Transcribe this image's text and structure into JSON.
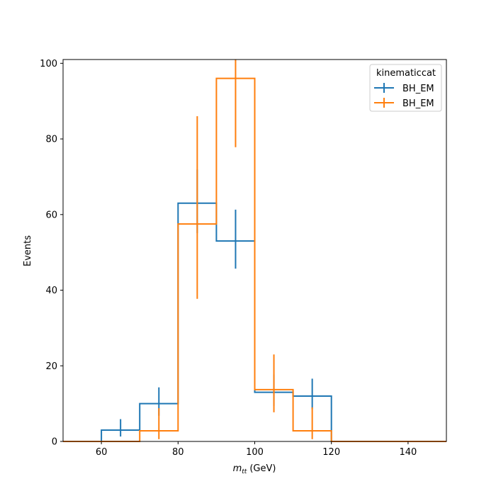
{
  "chart_data": {
    "type": "histogram",
    "title": "",
    "xlabel_main": "m",
    "xlabel_sub": "tt",
    "xlabel_unit": "(GeV)",
    "ylabel": "Events",
    "xlim": [
      50,
      150
    ],
    "ylim": [
      0,
      101
    ],
    "xticks": [
      60,
      80,
      100,
      120,
      140
    ],
    "yticks": [
      0,
      20,
      40,
      60,
      80,
      100
    ],
    "bin_edges": [
      50,
      60,
      70,
      80,
      90,
      100,
      110,
      120,
      130,
      140,
      150
    ],
    "grid": false,
    "legend": {
      "title": "kinematiccat",
      "placement": "top-right"
    },
    "series": [
      {
        "name": "BH_EM",
        "color": "#1f77b4",
        "values": [
          0,
          3,
          10,
          63,
          53,
          13,
          12,
          0,
          0,
          0
        ],
        "err_low": [
          0,
          1.7,
          3.2,
          7.9,
          7.3,
          3.6,
          3.5,
          0,
          0,
          0
        ],
        "err_high": [
          0,
          2.9,
          4.3,
          8.9,
          8.3,
          4.7,
          4.6,
          0,
          0,
          0
        ]
      },
      {
        "name": "BH_EM",
        "color": "#ff7f0e",
        "values": [
          0,
          0,
          2.8,
          57.5,
          96,
          13.7,
          2.8,
          0,
          0,
          0
        ],
        "err_low": [
          0,
          0,
          2.2,
          19.8,
          18.2,
          6.0,
          2.2,
          0,
          0,
          0
        ],
        "err_high": [
          0,
          0,
          6.0,
          28.5,
          5.0,
          9.3,
          6.2,
          0,
          0,
          0
        ]
      }
    ]
  }
}
